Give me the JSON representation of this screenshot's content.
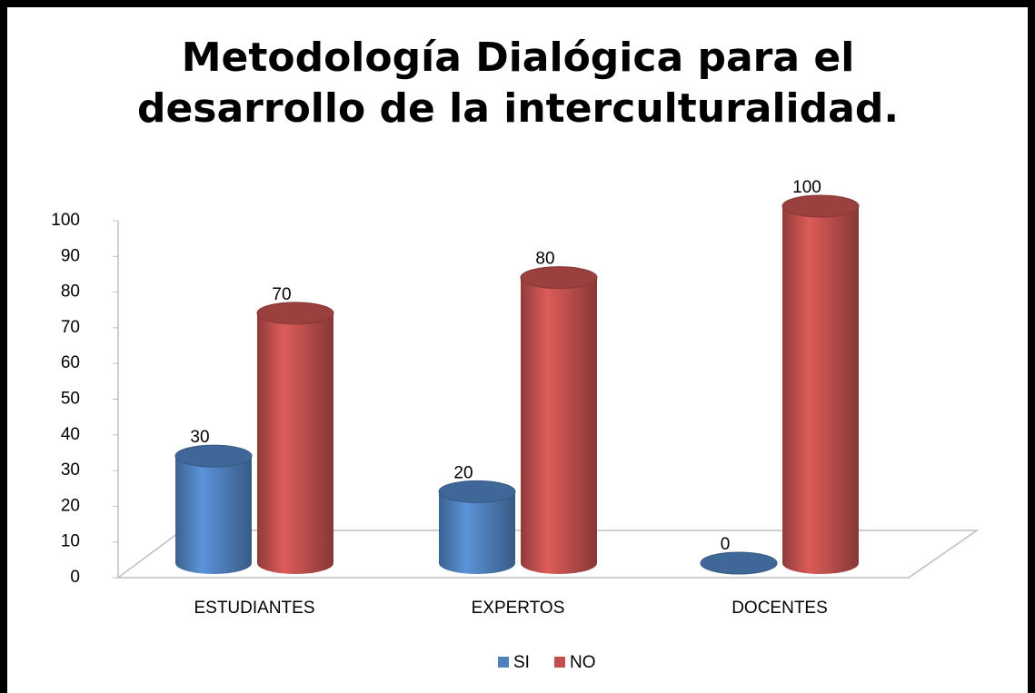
{
  "chart_data": {
    "type": "bar3d",
    "title": "Metodología Dialógica para el desarrollo de la interculturalidad.",
    "categories": [
      "ESTUDIANTES",
      "EXPERTOS",
      "DOCENTES"
    ],
    "series": [
      {
        "name": "SI",
        "color": "#4f81bd",
        "values": [
          30,
          20,
          0
        ]
      },
      {
        "name": "NO",
        "color": "#c0504d",
        "values": [
          70,
          80,
          100
        ]
      }
    ],
    "ylim": [
      0,
      100
    ],
    "yticks": [
      0,
      10,
      20,
      30,
      40,
      50,
      60,
      70,
      80,
      90,
      100
    ],
    "legend": "bottom"
  }
}
